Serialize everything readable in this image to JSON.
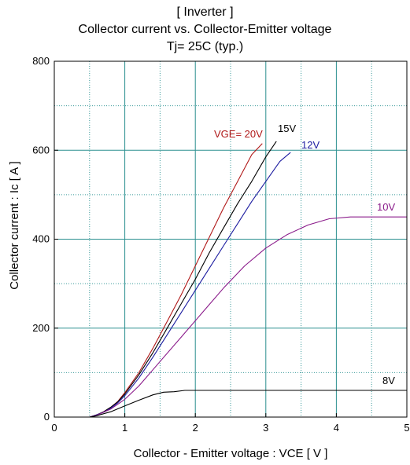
{
  "chart_data": {
    "type": "line",
    "title_lines": [
      "[ Inverter ]",
      "Collector current  vs.  Collector-Emitter voltage",
      "Tj= 25C  (typ.)"
    ],
    "xlabel": "Collector - Emitter voltage  :  VCE  [ V ]",
    "ylabel": "Collector current  :  Ic  [ A ]",
    "xlim": [
      0,
      5
    ],
    "ylim": [
      0,
      800
    ],
    "xticks": [
      0,
      1,
      2,
      3,
      4,
      5
    ],
    "yticks": [
      0,
      200,
      400,
      600,
      800
    ],
    "x_minor_gridlines": [
      0.5,
      1.5,
      2.5,
      3.5,
      4.5
    ],
    "y_minor_gridlines": [
      100,
      300,
      500,
      700
    ],
    "grid": true,
    "series": [
      {
        "name": "VGE= 20V",
        "color": "#b01818",
        "x": [
          0,
          0.5,
          0.6,
          0.7,
          0.8,
          0.9,
          1.0,
          1.2,
          1.4,
          1.6,
          1.8,
          2.0,
          2.2,
          2.4,
          2.6,
          2.8,
          2.95
        ],
        "y": [
          0,
          0,
          5,
          12,
          22,
          35,
          55,
          100,
          155,
          215,
          275,
          340,
          405,
          470,
          530,
          590,
          615
        ]
      },
      {
        "name": "15V",
        "color": "#000000",
        "x": [
          0,
          0.5,
          0.6,
          0.7,
          0.8,
          0.9,
          1.0,
          1.2,
          1.4,
          1.6,
          1.8,
          2.0,
          2.2,
          2.4,
          2.6,
          2.8,
          3.0,
          3.15
        ],
        "y": [
          0,
          0,
          5,
          12,
          22,
          34,
          52,
          95,
          145,
          200,
          255,
          310,
          370,
          425,
          480,
          530,
          585,
          620
        ]
      },
      {
        "name": "12V",
        "color": "#1c1ca0",
        "x": [
          0,
          0.5,
          0.6,
          0.7,
          0.8,
          0.9,
          1.0,
          1.2,
          1.4,
          1.6,
          1.8,
          2.0,
          2.2,
          2.4,
          2.6,
          2.8,
          3.0,
          3.2,
          3.35
        ],
        "y": [
          0,
          0,
          5,
          11,
          20,
          32,
          48,
          88,
          135,
          185,
          235,
          285,
          335,
          385,
          435,
          485,
          530,
          575,
          595
        ]
      },
      {
        "name": "10V",
        "color": "#8a1a8a",
        "x": [
          0,
          0.5,
          0.6,
          0.8,
          1.0,
          1.2,
          1.5,
          1.8,
          2.1,
          2.4,
          2.7,
          3.0,
          3.3,
          3.6,
          3.9,
          4.2,
          4.5,
          5.0
        ],
        "y": [
          0,
          0,
          4,
          18,
          40,
          70,
          125,
          180,
          235,
          290,
          340,
          380,
          410,
          432,
          446,
          450,
          450,
          450
        ]
      },
      {
        "name": "8V",
        "color": "#000000",
        "x": [
          0,
          0.5,
          0.6,
          0.8,
          1.0,
          1.2,
          1.4,
          1.55,
          1.7,
          1.85,
          2.0,
          3.0,
          4.0,
          5.0
        ],
        "y": [
          0,
          0,
          3,
          12,
          25,
          38,
          50,
          56,
          57,
          60,
          60,
          60,
          60,
          60
        ]
      }
    ]
  }
}
